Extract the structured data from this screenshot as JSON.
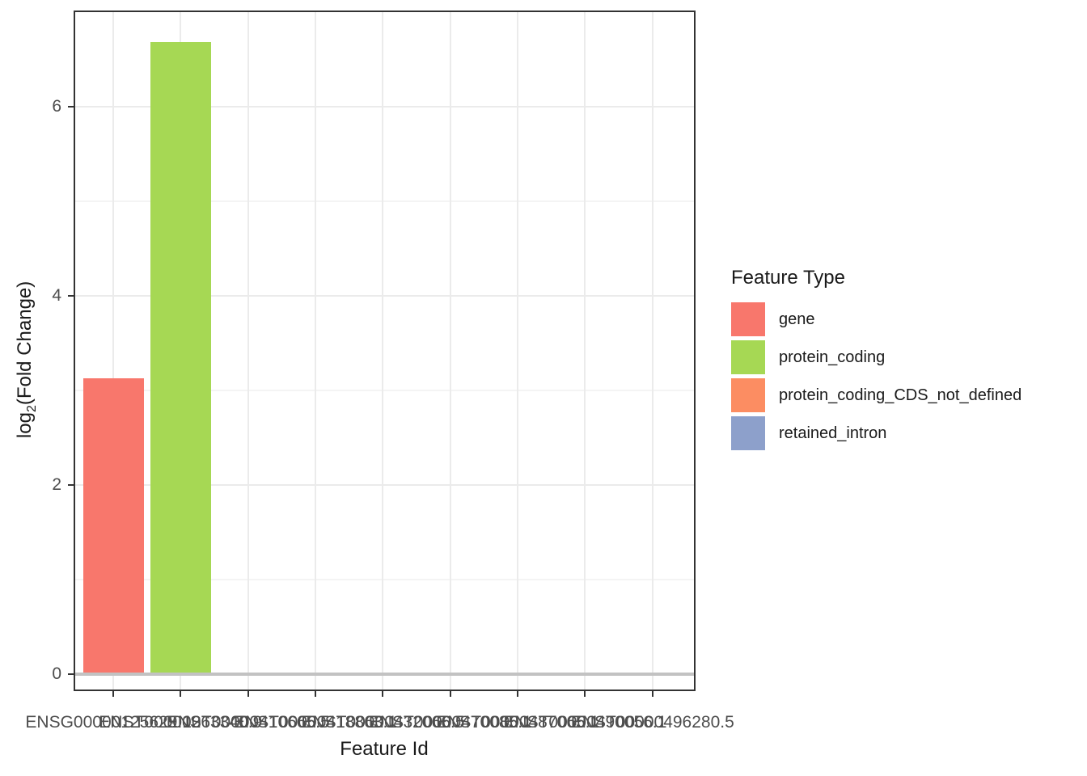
{
  "figure": {
    "background": "#FFFFFF"
  },
  "chart_data": {
    "type": "bar",
    "title": "",
    "xlabel": "Feature Id",
    "ylabel": "log2(Fold Change)",
    "ylabel_parts": {
      "base": "log",
      "sub": "2",
      "rest": "(Fold Change)"
    },
    "legend_title": "Feature Type",
    "legend_position": "right",
    "grid": true,
    "yticks": [
      0,
      2,
      4,
      6
    ],
    "yticks_minor": [
      1,
      3,
      5
    ],
    "ylim": [
      -0.17,
      7.02
    ],
    "categories": [
      "ENSG00000125629.10",
      "ENST00000263340.9",
      "ENST00000410665.5",
      "ENST00000418863.1",
      "ENST00000432066.5",
      "ENST00000470085.1",
      "ENST00000487065.1",
      "ENST00000490056.1",
      "ENST00000496280.5"
    ],
    "series": [
      {
        "name": "gene",
        "color": "#F8776C",
        "values": [
          3.13,
          null,
          null,
          null,
          null,
          null,
          null,
          null,
          null
        ]
      },
      {
        "name": "protein_coding",
        "color": "#A6D854",
        "values": [
          null,
          6.68,
          null,
          null,
          null,
          null,
          null,
          null,
          null
        ]
      },
      {
        "name": "protein_coding_CDS_not_defined",
        "color": "#FC8D62",
        "values": [
          null,
          null,
          null,
          null,
          null,
          null,
          null,
          null,
          null
        ]
      },
      {
        "name": "retained_intron",
        "color": "#8DA0CB",
        "values": [
          null,
          null,
          null,
          null,
          null,
          null,
          null,
          null,
          null
        ]
      }
    ],
    "baseline": {
      "y": 0,
      "color": "#C2C2C2"
    }
  },
  "colors": {
    "grid_major": "#EBEBEB",
    "grid_minor": "#F4F4F4",
    "panel_border": "#333333",
    "tick_mark": "#333333",
    "tick_label": "#4D4D4D",
    "title_text": "#1A1A1A"
  }
}
